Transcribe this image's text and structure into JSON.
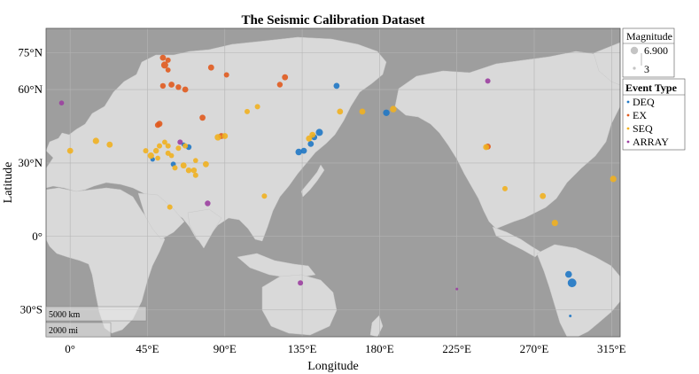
{
  "chart_data": {
    "type": "scatter",
    "title": "The Seismic Calibration Dataset",
    "xlabel": "Longitude",
    "ylabel": "Latitude",
    "xlim": [
      -14,
      320
    ],
    "ylim": [
      -41,
      85
    ],
    "x_ticks": [
      {
        "value": 0,
        "label": "0°"
      },
      {
        "value": 45,
        "label": "45°E"
      },
      {
        "value": 90,
        "label": "90°E"
      },
      {
        "value": 135,
        "label": "135°E"
      },
      {
        "value": 180,
        "label": "180°E"
      },
      {
        "value": 225,
        "label": "225°E"
      },
      {
        "value": 270,
        "label": "270°E"
      },
      {
        "value": 315,
        "label": "315°E"
      }
    ],
    "y_ticks": [
      {
        "value": 75,
        "label": "75°N"
      },
      {
        "value": 60,
        "label": "60°N"
      },
      {
        "value": 30,
        "label": "30°N"
      },
      {
        "value": 0,
        "label": "0°"
      },
      {
        "value": -30,
        "label": "30°S"
      }
    ],
    "grid": true,
    "colors": {
      "ocean": "#9e9e9e",
      "land": "#d9d9d9",
      "DEQ": "#1f77c4",
      "EX": "#e05a1e",
      "SEQ": "#f0b020",
      "ARRAY": "#9b3fa0"
    },
    "scale_bar": {
      "km_label": "5000 km",
      "mi_label": "2000 mi"
    },
    "legend_magnitude": {
      "title": "Magnitude",
      "max_label": "6.900",
      "min_label": "3",
      "placement": "top-right outside"
    },
    "legend_type": {
      "title": "Event Type",
      "entries": [
        "DEQ",
        "EX",
        "SEQ",
        "ARRAY"
      ],
      "placement": "right outside"
    },
    "series": [
      {
        "name": "DEQ",
        "points": [
          [
            155,
            61.5,
            5
          ],
          [
            184,
            50.5,
            5.3
          ],
          [
            145,
            42.5,
            5.6
          ],
          [
            142,
            40.5,
            5
          ],
          [
            140,
            37.8,
            5
          ],
          [
            136,
            35,
            5
          ],
          [
            133,
            34.5,
            5.3
          ],
          [
            60,
            29.5,
            4.5
          ],
          [
            69,
            36.5,
            4.8
          ],
          [
            48,
            31.5,
            4.2
          ],
          [
            290,
            -15.5,
            5.4
          ],
          [
            292,
            -19,
            6.4
          ],
          [
            291,
            -32.5,
            3.2
          ],
          [
            66,
            37.5,
            4
          ]
        ]
      },
      {
        "name": "EX",
        "points": [
          [
            52,
            46,
            5
          ],
          [
            51,
            45.5,
            4.8
          ],
          [
            77,
            48.5,
            5
          ],
          [
            59,
            62,
            5
          ],
          [
            54,
            61.5,
            4.8
          ],
          [
            63,
            61,
            4.8
          ],
          [
            67,
            60,
            5
          ],
          [
            82,
            69,
            5
          ],
          [
            91,
            66,
            4.6
          ],
          [
            125,
            65,
            5
          ],
          [
            122,
            62,
            4.8
          ],
          [
            57,
            72,
            4.6
          ],
          [
            55,
            70,
            5.6
          ],
          [
            54,
            73,
            5
          ],
          [
            243,
            36.7,
            5
          ],
          [
            57,
            68,
            4.5
          ],
          [
            88,
            41,
            5
          ]
        ]
      },
      {
        "name": "SEQ",
        "points": [
          [
            0,
            35,
            5
          ],
          [
            15,
            39,
            5.2
          ],
          [
            23,
            37.5,
            5
          ],
          [
            44,
            35,
            4.6
          ],
          [
            50,
            35,
            4.8
          ],
          [
            47,
            33,
            5.2
          ],
          [
            52,
            37,
            4.6
          ],
          [
            57,
            37,
            4.6
          ],
          [
            63,
            36,
            4.6
          ],
          [
            67,
            37,
            4.6
          ],
          [
            57,
            34,
            4.6
          ],
          [
            59,
            33,
            4.4
          ],
          [
            61,
            28,
            4.6
          ],
          [
            66,
            29,
            5
          ],
          [
            69,
            27,
            4.8
          ],
          [
            72,
            27,
            4.8
          ],
          [
            73,
            25,
            4.6
          ],
          [
            79,
            29.5,
            5
          ],
          [
            86,
            40.5,
            5.3
          ],
          [
            90,
            41,
            5
          ],
          [
            73,
            31,
            4.4
          ],
          [
            109,
            53,
            4.6
          ],
          [
            103,
            51,
            4.6
          ],
          [
            157,
            51,
            5
          ],
          [
            170,
            51,
            5
          ],
          [
            188,
            52,
            5.3
          ],
          [
            141,
            41.5,
            5
          ],
          [
            139,
            40,
            5
          ],
          [
            58,
            12,
            4.6
          ],
          [
            113,
            16.5,
            4.6
          ],
          [
            242,
            36.5,
            5
          ],
          [
            253,
            19.5,
            4.6
          ],
          [
            275,
            16.5,
            5
          ],
          [
            282,
            5.5,
            5.2
          ],
          [
            316,
            23.5,
            5.2
          ],
          [
            51,
            32,
            4.4
          ],
          [
            55,
            38.5,
            4.5
          ]
        ]
      },
      {
        "name": "ARRAY",
        "points": [
          [
            -5,
            54.5,
            4.4
          ],
          [
            80,
            13.5,
            4.8
          ],
          [
            134,
            -19,
            4.6
          ],
          [
            243,
            63.5,
            4.6
          ],
          [
            225,
            -21.5,
            3.2
          ],
          [
            64,
            38.5,
            4.6
          ]
        ]
      }
    ]
  }
}
